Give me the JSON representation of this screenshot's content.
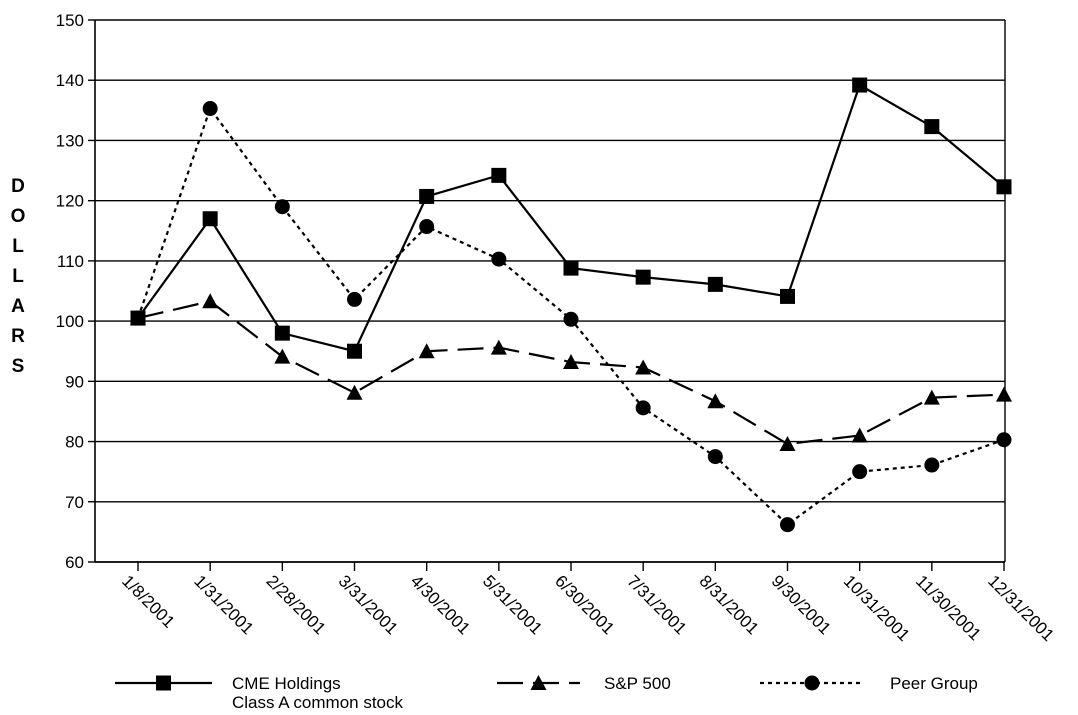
{
  "chart_data": {
    "type": "line",
    "title": "",
    "xlabel": "",
    "ylabel": "DOLLARS",
    "ylim": [
      60,
      150
    ],
    "yticks": [
      60,
      70,
      80,
      90,
      100,
      110,
      120,
      130,
      140,
      150
    ],
    "grid": true,
    "legend_position": "bottom",
    "categories": [
      "1/8/2001",
      "1/31/2001",
      "2/28/2001",
      "3/31/2001",
      "4/30/2001",
      "5/31/2001",
      "6/30/2001",
      "7/31/2001",
      "8/31/2001",
      "9/30/2001",
      "10/31/2001",
      "11/30/2001",
      "12/31/2001"
    ],
    "series": [
      {
        "name": "CME Holdings Class A common stock",
        "name_lines": [
          "CME Holdings",
          "Class A common stock"
        ],
        "style": "solid",
        "marker": "square",
        "values": [
          100.5,
          117,
          98,
          95,
          120.7,
          124.2,
          108.8,
          107.3,
          106.1,
          104.1,
          139.2,
          132.3,
          122.3
        ]
      },
      {
        "name": "S&P 500",
        "name_lines": [
          "S&P 500"
        ],
        "style": "dashed",
        "marker": "triangle",
        "values": [
          100.5,
          103.3,
          94.1,
          88.1,
          95,
          95.6,
          93.2,
          92.3,
          86.7,
          79.6,
          81,
          87.3,
          87.8
        ]
      },
      {
        "name": "Peer Group",
        "name_lines": [
          "Peer Group"
        ],
        "style": "dotted",
        "marker": "circle",
        "values": [
          100.5,
          135.3,
          119,
          103.6,
          115.7,
          110.3,
          100.3,
          85.6,
          77.5,
          66.2,
          75,
          76.1,
          80.3
        ]
      }
    ]
  }
}
